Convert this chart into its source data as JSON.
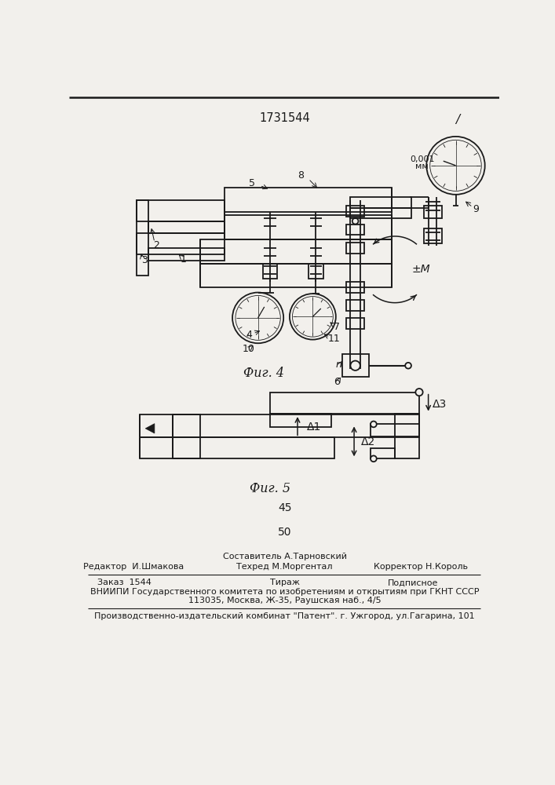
{
  "patent_number": "1731544",
  "fig4_caption": "Фиг. 4",
  "fig5_caption": "Фиг. 5",
  "page_num1": "45",
  "page_num2": "50",
  "label_editor": "Редактор  И.Шмакова",
  "label_composer": "Составитель А.Тарновский",
  "label_techred": "Техред М.Моргентал",
  "label_corrector": "Корректор Н.Король",
  "label_order": "Заказ  1544",
  "label_tirazh": "Тираж",
  "label_podpisnoe": "Подписное",
  "label_vniipи": "ВНИИПИ Государственного комитета по изобретениям и открытиям при ГКНТ СССР",
  "label_address": "113035, Москва, Ж-35, Раушская наб., 4/5",
  "label_factory": "Производственно-издательский комбинат \"Патент\". г. Ужгород, ул.Гагарина, 101",
  "bg_color": "#f2f0ec",
  "line_color": "#1a1a1a"
}
